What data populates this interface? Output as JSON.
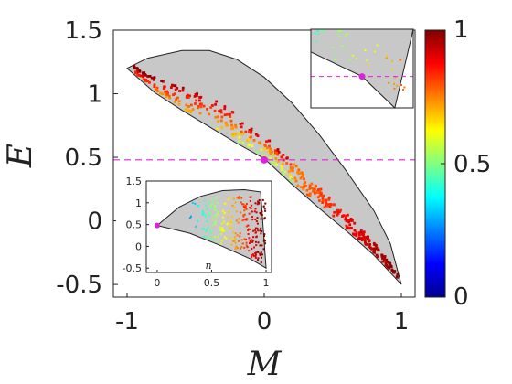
{
  "chart_data": {
    "type": "scatter",
    "main": {
      "xlabel": "M",
      "ylabel": "E",
      "xlim": [
        -1.1,
        1.1
      ],
      "ylim": [
        -0.6,
        1.5
      ],
      "xticks": [
        -1,
        0,
        1
      ],
      "xtick_labels": [
        "-1",
        "0",
        "1"
      ],
      "yticks": [
        -0.5,
        0,
        0.5,
        1,
        1.5
      ],
      "ytick_labels": [
        "-0.5",
        "0",
        "0.5",
        "1",
        "1.5"
      ],
      "region_upper": [
        [
          -1,
          1.2
        ],
        [
          -0.85,
          1.28
        ],
        [
          -0.6,
          1.34
        ],
        [
          -0.4,
          1.34
        ],
        [
          -0.2,
          1.27
        ],
        [
          0,
          1.13
        ],
        [
          0.2,
          0.93
        ],
        [
          0.4,
          0.68
        ],
        [
          0.6,
          0.39
        ],
        [
          0.8,
          0.08
        ],
        [
          0.92,
          -0.18
        ],
        [
          1,
          -0.5
        ]
      ],
      "region_lower": [
        [
          -1,
          1.2
        ],
        [
          -0.8,
          1.01
        ],
        [
          -0.6,
          0.87
        ],
        [
          -0.4,
          0.74
        ],
        [
          -0.2,
          0.61
        ],
        [
          0,
          0.49
        ],
        [
          0.2,
          0.29
        ],
        [
          0.4,
          0.1
        ],
        [
          0.6,
          -0.08
        ],
        [
          0.8,
          -0.27
        ],
        [
          1,
          -0.5
        ]
      ],
      "marked_point": {
        "M": 0,
        "E": 0.48
      },
      "hline": 0.48,
      "grid": false
    },
    "inset_bottom": {
      "xlabel": "n",
      "xlim": [
        -0.1,
        1.05
      ],
      "ylim": [
        -0.6,
        1.5
      ],
      "xticks": [
        0,
        0.5,
        1
      ],
      "xtick_labels": [
        "0",
        "0.5",
        "1"
      ],
      "yticks": [
        -0.5,
        0,
        0.5,
        1,
        1.5
      ],
      "ytick_labels": [
        "-0.5",
        "0",
        "0.5",
        "1",
        "1.5"
      ],
      "region_upper": [
        [
          0,
          0.48
        ],
        [
          0.2,
          0.9
        ],
        [
          0.4,
          1.15
        ],
        [
          0.6,
          1.28
        ],
        [
          0.8,
          1.3
        ],
        [
          0.95,
          1.25
        ],
        [
          1,
          -0.5
        ]
      ],
      "region_lower": [
        [
          0,
          0.48
        ],
        [
          0.3,
          0.3
        ],
        [
          0.6,
          0.0
        ],
        [
          0.85,
          -0.28
        ],
        [
          1,
          -0.5
        ]
      ],
      "marked_point": {
        "n": 0,
        "E": 0.48
      }
    },
    "inset_top": {
      "xlim": [
        -0.25,
        0.25
      ],
      "ylim": [
        0.3,
        0.75
      ],
      "hline": 0.48,
      "marked_point": {
        "M": 0,
        "E": 0.48
      }
    },
    "colorbar": {
      "min": 0,
      "max": 1,
      "tick_labels": [
        "0",
        "0.5",
        "1"
      ],
      "colormap": "jet",
      "colors": [
        "#00008f",
        "#0000ff",
        "#0080ff",
        "#00ffff",
        "#80ff80",
        "#ffff00",
        "#ff8000",
        "#ff0000",
        "#800000"
      ]
    },
    "colors": {
      "region": "#c8c8c8",
      "marker": "#e020e0",
      "hline": "#dd22dd"
    }
  }
}
